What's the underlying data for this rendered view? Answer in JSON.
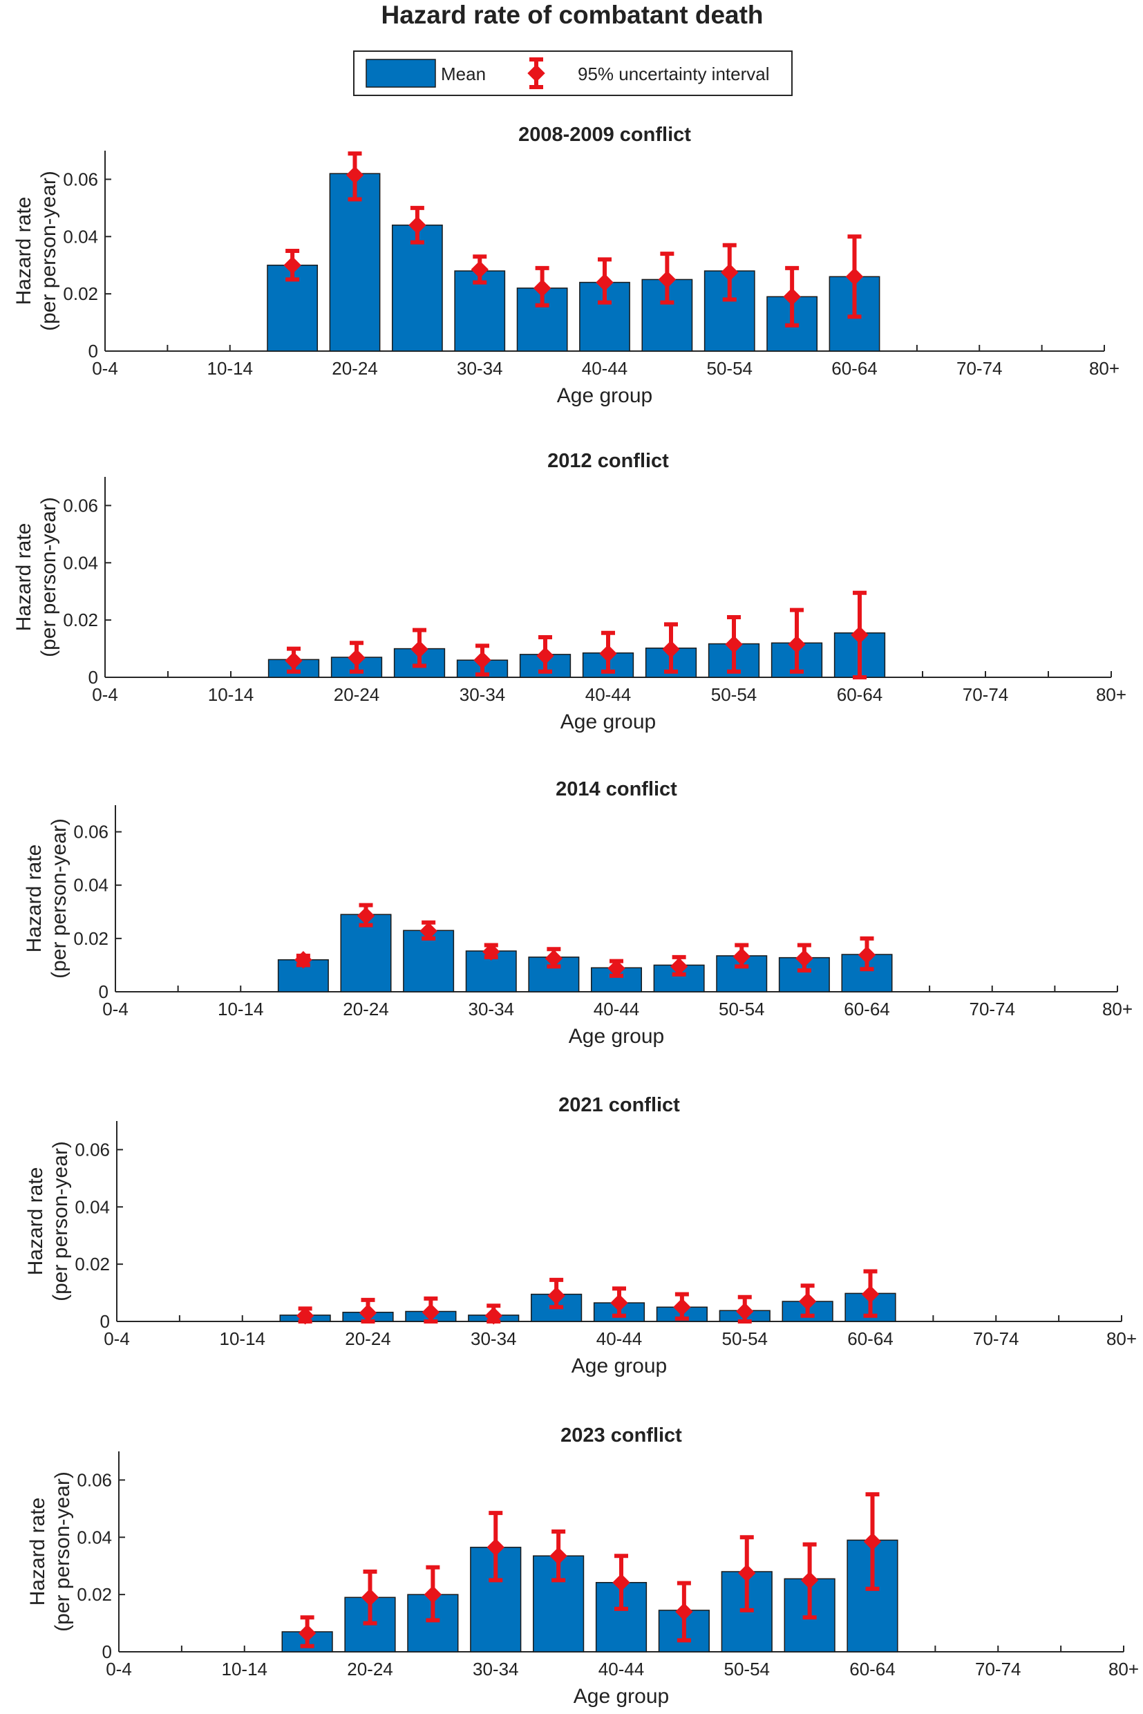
{
  "figure": {
    "title": "Hazard rate of combatant death",
    "legend": {
      "mean_label": "Mean",
      "interval_label": "95% uncertainty interval"
    },
    "xlabel": "Age group",
    "ylabel_lines": [
      "Hazard rate",
      "(per person-year)"
    ],
    "colors": {
      "bar": "#0072BD",
      "error": "#E8141A",
      "axis": "#262626"
    }
  },
  "chart_data": [
    {
      "type": "bar",
      "title": "2008-2009 conflict",
      "xlabel": "Age group",
      "ylabel": "Hazard rate (per person-year)",
      "categories": [
        "0-4",
        "5-9",
        "10-14",
        "15-19",
        "20-24",
        "25-29",
        "30-34",
        "35-39",
        "40-44",
        "45-49",
        "50-54",
        "55-59",
        "60-64",
        "65-69",
        "70-74",
        "75-79",
        "80+"
      ],
      "xtick_labels": [
        "0-4",
        "10-14",
        "20-24",
        "30-34",
        "40-44",
        "50-54",
        "60-64",
        "70-74",
        "80+"
      ],
      "yticks": [
        0,
        0.02,
        0.04,
        0.06
      ],
      "ytick_labels": [
        "0",
        "0.02",
        "0.04",
        "0.06"
      ],
      "ylim": [
        0,
        0.07
      ],
      "values": [
        null,
        null,
        null,
        0.03,
        0.062,
        0.044,
        0.028,
        0.022,
        0.024,
        0.025,
        0.028,
        0.019,
        0.026,
        null,
        null,
        null,
        null
      ],
      "points": [
        null,
        null,
        null,
        0.03,
        0.0615,
        0.044,
        0.0285,
        0.022,
        0.024,
        0.025,
        0.0275,
        0.019,
        0.026,
        null,
        null,
        null,
        null
      ],
      "lower": [
        null,
        null,
        null,
        0.025,
        0.053,
        0.038,
        0.024,
        0.016,
        0.017,
        0.017,
        0.018,
        0.009,
        0.012,
        null,
        null,
        null,
        null
      ],
      "upper": [
        null,
        null,
        null,
        0.035,
        0.069,
        0.05,
        0.033,
        0.029,
        0.032,
        0.034,
        0.037,
        0.029,
        0.04,
        null,
        null,
        null,
        null
      ]
    },
    {
      "type": "bar",
      "title": "2012 conflict",
      "xlabel": "Age group",
      "ylabel": "Hazard rate (per person-year)",
      "categories": [
        "0-4",
        "5-9",
        "10-14",
        "15-19",
        "20-24",
        "25-29",
        "30-34",
        "35-39",
        "40-44",
        "45-49",
        "50-54",
        "55-59",
        "60-64",
        "65-69",
        "70-74",
        "75-79",
        "80+"
      ],
      "xtick_labels": [
        "0-4",
        "10-14",
        "20-24",
        "30-34",
        "40-44",
        "50-54",
        "60-64",
        "70-74",
        "80+"
      ],
      "yticks": [
        0,
        0.02,
        0.04,
        0.06
      ],
      "ytick_labels": [
        "0",
        "0.02",
        "0.04",
        "0.06"
      ],
      "ylim": [
        0,
        0.07
      ],
      "values": [
        null,
        null,
        null,
        0.0062,
        0.007,
        0.01,
        0.006,
        0.008,
        0.0085,
        0.0102,
        0.0117,
        0.012,
        0.0155,
        null,
        null,
        null,
        null
      ],
      "points": [
        null,
        null,
        null,
        0.0058,
        0.0068,
        0.0098,
        0.006,
        0.0075,
        0.0083,
        0.0098,
        0.0115,
        0.0115,
        0.0148,
        null,
        null,
        null,
        null
      ],
      "lower": [
        null,
        null,
        null,
        0.002,
        0.002,
        0.004,
        0.001,
        0.002,
        0.002,
        0.002,
        0.002,
        0.002,
        0.0,
        null,
        null,
        null,
        null
      ],
      "upper": [
        null,
        null,
        null,
        0.01,
        0.012,
        0.0165,
        0.011,
        0.014,
        0.0155,
        0.0185,
        0.021,
        0.0235,
        0.0295,
        null,
        null,
        null,
        null
      ]
    },
    {
      "type": "bar",
      "title": "2014 conflict",
      "xlabel": "Age group",
      "ylabel": "Hazard rate (per person-year)",
      "categories": [
        "0-4",
        "5-9",
        "10-14",
        "15-19",
        "20-24",
        "25-29",
        "30-34",
        "35-39",
        "40-44",
        "45-49",
        "50-54",
        "55-59",
        "60-64",
        "65-69",
        "70-74",
        "75-79",
        "80+"
      ],
      "xtick_labels": [
        "0-4",
        "10-14",
        "20-24",
        "30-34",
        "40-44",
        "50-54",
        "60-64",
        "70-74",
        "80+"
      ],
      "yticks": [
        0,
        0.02,
        0.04,
        0.06
      ],
      "ytick_labels": [
        "0",
        "0.02",
        "0.04",
        "0.06"
      ],
      "ylim": [
        0,
        0.07
      ],
      "values": [
        null,
        null,
        null,
        0.012,
        0.029,
        0.023,
        0.0153,
        0.013,
        0.009,
        0.01,
        0.0135,
        0.0128,
        0.014,
        null,
        null,
        null,
        null
      ],
      "points": [
        null,
        null,
        null,
        0.012,
        0.0285,
        0.0228,
        0.015,
        0.0125,
        0.0088,
        0.0095,
        0.0132,
        0.0125,
        0.0138,
        null,
        null,
        null,
        null
      ],
      "lower": [
        null,
        null,
        null,
        0.01,
        0.025,
        0.02,
        0.013,
        0.0095,
        0.006,
        0.0065,
        0.0095,
        0.008,
        0.0085,
        null,
        null,
        null,
        null
      ],
      "upper": [
        null,
        null,
        null,
        0.0135,
        0.0325,
        0.026,
        0.0175,
        0.016,
        0.0115,
        0.013,
        0.0175,
        0.0175,
        0.02,
        null,
        null,
        null,
        null
      ]
    },
    {
      "type": "bar",
      "title": "2021 conflict",
      "xlabel": "Age group",
      "ylabel": "Hazard rate (per person-year)",
      "categories": [
        "0-4",
        "5-9",
        "10-14",
        "15-19",
        "20-24",
        "25-29",
        "30-34",
        "35-39",
        "40-44",
        "45-49",
        "50-54",
        "55-59",
        "60-64",
        "65-69",
        "70-74",
        "75-79",
        "80+"
      ],
      "xtick_labels": [
        "0-4",
        "10-14",
        "20-24",
        "30-34",
        "40-44",
        "50-54",
        "60-64",
        "70-74",
        "80+"
      ],
      "yticks": [
        0,
        0.02,
        0.04,
        0.06
      ],
      "ytick_labels": [
        "0",
        "0.02",
        "0.04",
        "0.06"
      ],
      "ylim": [
        0,
        0.07
      ],
      "values": [
        null,
        null,
        null,
        0.0022,
        0.0032,
        0.0035,
        0.0022,
        0.0095,
        0.0065,
        0.005,
        0.0038,
        0.007,
        0.0098,
        null,
        null,
        null,
        null
      ],
      "points": [
        null,
        null,
        null,
        0.002,
        0.003,
        0.0032,
        0.002,
        0.009,
        0.0065,
        0.005,
        0.0035,
        0.007,
        0.0095,
        null,
        null,
        null,
        null
      ],
      "lower": [
        null,
        null,
        null,
        0.0,
        0.0,
        0.0,
        0.0,
        0.005,
        0.002,
        0.001,
        0.0,
        0.002,
        0.002,
        null,
        null,
        null,
        null
      ],
      "upper": [
        null,
        null,
        null,
        0.0045,
        0.0075,
        0.008,
        0.0055,
        0.0145,
        0.0115,
        0.0095,
        0.0085,
        0.0125,
        0.0175,
        null,
        null,
        null,
        null
      ]
    },
    {
      "type": "bar",
      "title": "2023 conflict",
      "xlabel": "Age group",
      "ylabel": "Hazard rate (per person-year)",
      "categories": [
        "0-4",
        "5-9",
        "10-14",
        "15-19",
        "20-24",
        "25-29",
        "30-34",
        "35-39",
        "40-44",
        "45-49",
        "50-54",
        "55-59",
        "60-64",
        "65-69",
        "70-74",
        "75-79",
        "80+"
      ],
      "xtick_labels": [
        "0-4",
        "10-14",
        "20-24",
        "30-34",
        "40-44",
        "50-54",
        "60-64",
        "70-74",
        "80+"
      ],
      "yticks": [
        0,
        0.02,
        0.04,
        0.06
      ],
      "ytick_labels": [
        "0",
        "0.02",
        "0.04",
        "0.06"
      ],
      "ylim": [
        0,
        0.07
      ],
      "values": [
        null,
        null,
        null,
        0.007,
        0.019,
        0.02,
        0.0365,
        0.0335,
        0.0242,
        0.0145,
        0.028,
        0.0255,
        0.039,
        null,
        null,
        null,
        null
      ],
      "points": [
        null,
        null,
        null,
        0.0065,
        0.019,
        0.02,
        0.0365,
        0.0335,
        0.0242,
        0.014,
        0.0275,
        0.025,
        0.0385,
        null,
        null,
        null,
        null
      ],
      "lower": [
        null,
        null,
        null,
        0.002,
        0.01,
        0.011,
        0.025,
        0.025,
        0.015,
        0.004,
        0.0145,
        0.012,
        0.022,
        null,
        null,
        null,
        null
      ],
      "upper": [
        null,
        null,
        null,
        0.012,
        0.028,
        0.0295,
        0.0485,
        0.042,
        0.0335,
        0.024,
        0.04,
        0.0375,
        0.055,
        null,
        null,
        null,
        null
      ]
    }
  ]
}
